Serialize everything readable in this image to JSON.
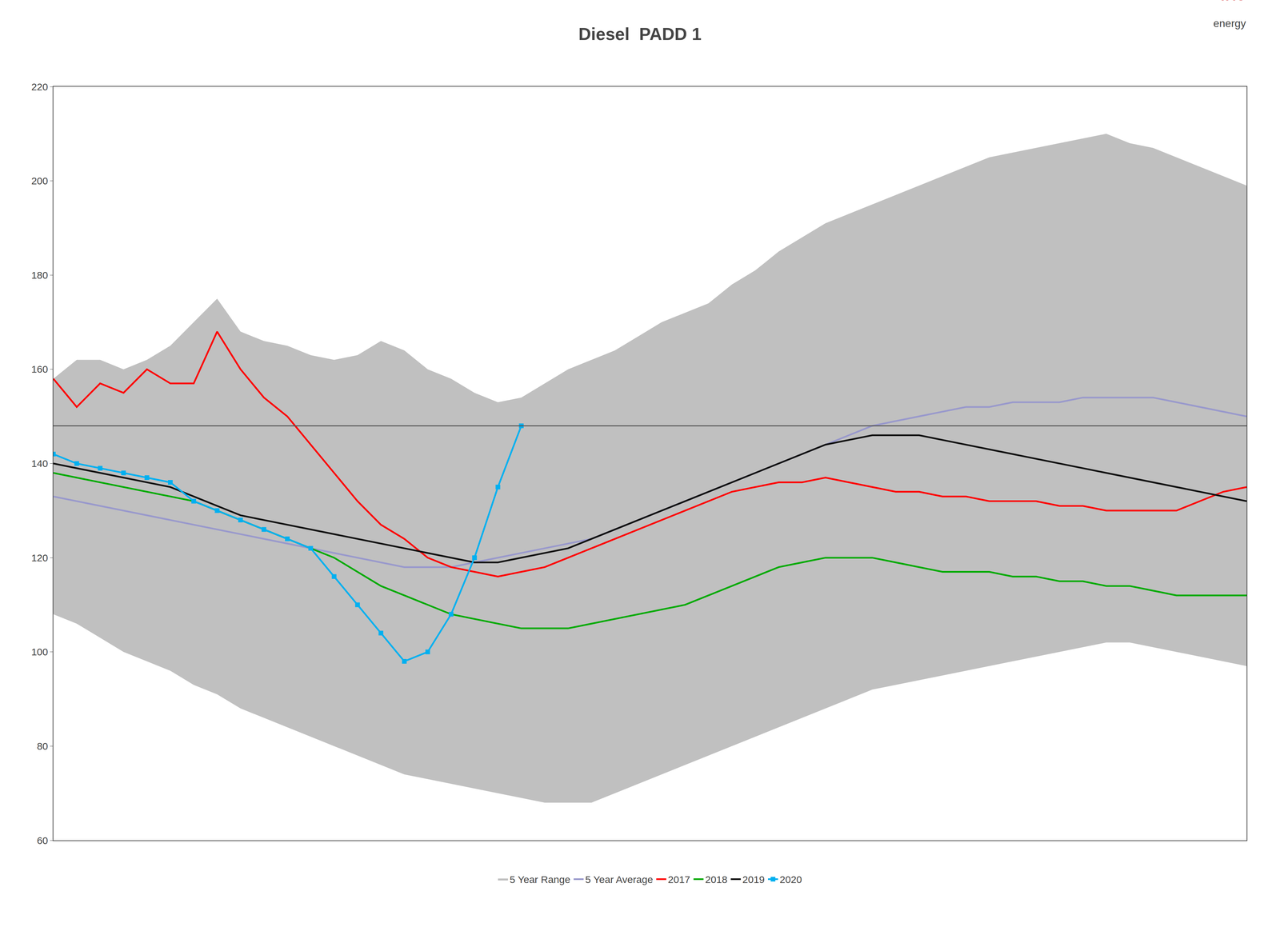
{
  "chart_data": {
    "type": "line",
    "title": "Diesel  PADD 1",
    "x": [
      1,
      2,
      3,
      4,
      5,
      6,
      7,
      8,
      9,
      10,
      11,
      12,
      13,
      14,
      15,
      16,
      17,
      18,
      19,
      20,
      21,
      22,
      23,
      24,
      25,
      26,
      27,
      28,
      29,
      30,
      31,
      32,
      33,
      34,
      35,
      36,
      37,
      38,
      39,
      40,
      41,
      42,
      43,
      44,
      45,
      46,
      47,
      48,
      49,
      50,
      51,
      52
    ],
    "series": [
      {
        "name": "5 Year Range",
        "type": "range",
        "color": "#c0c0c0",
        "upper": [
          158,
          162,
          162,
          160,
          162,
          165,
          170,
          175,
          168,
          166,
          165,
          163,
          162,
          163,
          166,
          164,
          160,
          158,
          155,
          153,
          154,
          157,
          160,
          162,
          164,
          167,
          170,
          172,
          174,
          178,
          181,
          185,
          188,
          191,
          193,
          195,
          197,
          199,
          201,
          203,
          205,
          206,
          207,
          208,
          209,
          210,
          208,
          207,
          205,
          203,
          201,
          199
        ],
        "lower": [
          108,
          106,
          103,
          100,
          98,
          96,
          93,
          91,
          88,
          86,
          84,
          82,
          80,
          78,
          76,
          74,
          73,
          72,
          71,
          70,
          69,
          68,
          68,
          68,
          70,
          72,
          74,
          76,
          78,
          80,
          82,
          84,
          86,
          88,
          90,
          92,
          93,
          94,
          95,
          96,
          97,
          98,
          99,
          100,
          101,
          102,
          102,
          101,
          100,
          99,
          98,
          97
        ]
      },
      {
        "name": "5 Year Average",
        "color": "#9999cc",
        "values": [
          133,
          132,
          131,
          130,
          129,
          128,
          127,
          126,
          125,
          124,
          123,
          122,
          121,
          120,
          119,
          118,
          118,
          118,
          119,
          120,
          121,
          122,
          123,
          124,
          126,
          128,
          130,
          132,
          134,
          136,
          138,
          140,
          142,
          144,
          146,
          148,
          149,
          150,
          151,
          152,
          152,
          153,
          153,
          153,
          154,
          154,
          154,
          154,
          153,
          152,
          151,
          150
        ]
      },
      {
        "name": "2017",
        "color": "#ff0000",
        "values": [
          158,
          152,
          157,
          155,
          160,
          157,
          157,
          168,
          160,
          154,
          150,
          144,
          138,
          132,
          127,
          124,
          120,
          118,
          117,
          116,
          117,
          118,
          120,
          122,
          124,
          126,
          128,
          130,
          132,
          134,
          135,
          136,
          136,
          137,
          136,
          135,
          134,
          134,
          133,
          133,
          132,
          132,
          132,
          131,
          131,
          130,
          130,
          130,
          130,
          132,
          134,
          135
        ]
      },
      {
        "name": "2018",
        "color": "#00aa00",
        "values": [
          138,
          137,
          136,
          135,
          134,
          133,
          132,
          130,
          128,
          126,
          124,
          122,
          120,
          117,
          114,
          112,
          110,
          108,
          107,
          106,
          105,
          105,
          105,
          106,
          107,
          108,
          109,
          110,
          112,
          114,
          116,
          118,
          119,
          120,
          120,
          120,
          119,
          118,
          117,
          117,
          117,
          116,
          116,
          115,
          115,
          114,
          114,
          113,
          112,
          112,
          112,
          112
        ]
      },
      {
        "name": "2019",
        "color": "#111111",
        "values": [
          140,
          139,
          138,
          137,
          136,
          135,
          133,
          131,
          129,
          128,
          127,
          126,
          125,
          124,
          123,
          122,
          121,
          120,
          119,
          119,
          120,
          121,
          122,
          124,
          126,
          128,
          130,
          132,
          134,
          136,
          138,
          140,
          142,
          144,
          145,
          146,
          146,
          146,
          145,
          144,
          143,
          142,
          141,
          140,
          139,
          138,
          137,
          136,
          135,
          134,
          133,
          132
        ]
      },
      {
        "name": "2020",
        "color": "#00b0f0",
        "marker": "square",
        "x": [
          1,
          2,
          3,
          4,
          5,
          6,
          7,
          8,
          9,
          10,
          11,
          12,
          13,
          14,
          15,
          16,
          17,
          18,
          19,
          20,
          21
        ],
        "values": [
          142,
          140,
          139,
          138,
          137,
          136,
          132,
          130,
          128,
          126,
          124,
          122,
          116,
          110,
          104,
          98,
          100,
          108,
          120,
          135,
          148
        ]
      }
    ],
    "reference_line": 148,
    "annotations": [
      {
        "text": "TAC",
        "color": "#cc2222"
      },
      {
        "text": "energy",
        "color": "#444444"
      }
    ],
    "xlim": [
      1,
      52
    ],
    "ylim": [
      60,
      220
    ],
    "yticks": [
      60,
      80,
      100,
      120,
      140,
      160,
      180,
      200,
      220
    ],
    "tick_labels": "y",
    "grid": false,
    "legend": "bottom"
  }
}
